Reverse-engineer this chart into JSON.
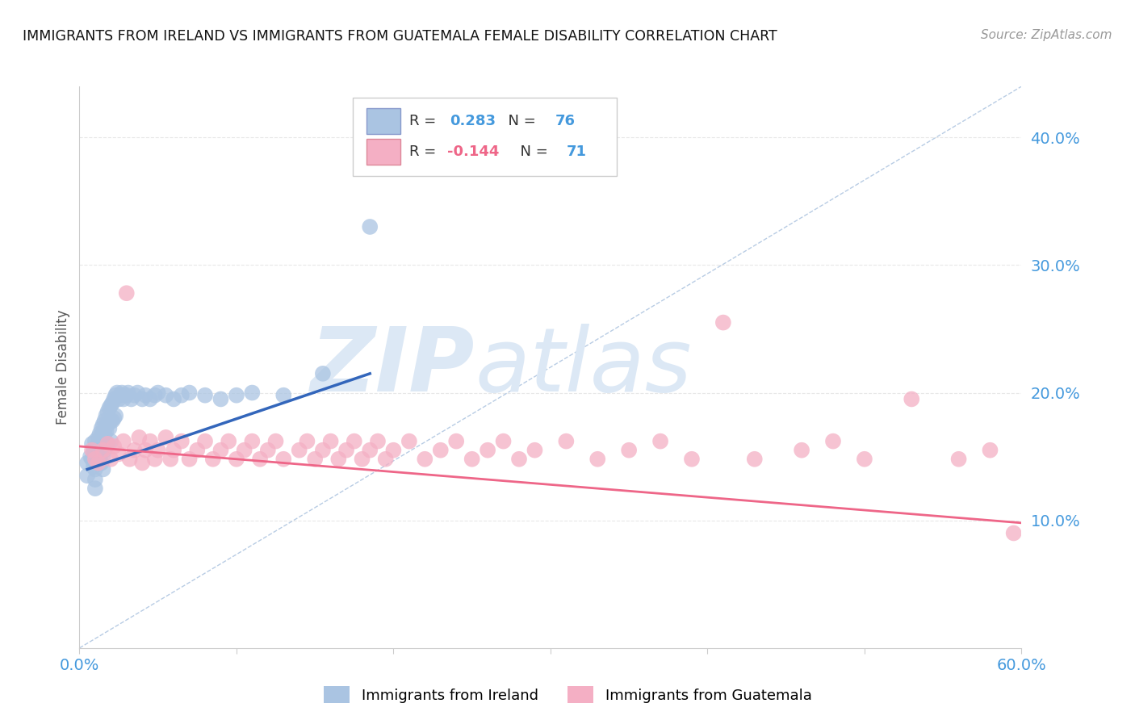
{
  "title": "IMMIGRANTS FROM IRELAND VS IMMIGRANTS FROM GUATEMALA FEMALE DISABILITY CORRELATION CHART",
  "source": "Source: ZipAtlas.com",
  "ylabel": "Female Disability",
  "xmin": 0.0,
  "xmax": 0.6,
  "ymin": 0.0,
  "ymax": 0.44,
  "yticks": [
    0.1,
    0.2,
    0.3,
    0.4
  ],
  "ytick_labels": [
    "10.0%",
    "20.0%",
    "30.0%",
    "40.0%"
  ],
  "xticks": [
    0.0,
    0.1,
    0.2,
    0.3,
    0.4,
    0.5,
    0.6
  ],
  "xtick_labels": [
    "0.0%",
    "",
    "",
    "",
    "",
    "",
    "60.0%"
  ],
  "ireland_R": 0.283,
  "ireland_N": 76,
  "guatemala_R": -0.144,
  "guatemala_N": 71,
  "ireland_color": "#aac4e2",
  "guatemala_color": "#f4afc4",
  "ireland_line_color": "#3366bb",
  "guatemala_line_color": "#ee6688",
  "diagonal_color": "#b8cce4",
  "background_color": "#ffffff",
  "grid_color": "#e8e8e8",
  "tick_color": "#4499dd",
  "ireland_scatter_x": [
    0.005,
    0.005,
    0.007,
    0.008,
    0.008,
    0.009,
    0.009,
    0.01,
    0.01,
    0.01,
    0.01,
    0.01,
    0.01,
    0.011,
    0.011,
    0.012,
    0.012,
    0.012,
    0.013,
    0.013,
    0.013,
    0.014,
    0.014,
    0.014,
    0.014,
    0.015,
    0.015,
    0.015,
    0.015,
    0.015,
    0.016,
    0.016,
    0.016,
    0.017,
    0.017,
    0.017,
    0.018,
    0.018,
    0.018,
    0.019,
    0.019,
    0.02,
    0.02,
    0.02,
    0.021,
    0.021,
    0.022,
    0.022,
    0.023,
    0.023,
    0.024,
    0.025,
    0.026,
    0.027,
    0.028,
    0.03,
    0.031,
    0.033,
    0.035,
    0.037,
    0.04,
    0.042,
    0.045,
    0.048,
    0.05,
    0.055,
    0.06,
    0.065,
    0.07,
    0.08,
    0.09,
    0.1,
    0.11,
    0.13,
    0.155,
    0.185
  ],
  "ireland_scatter_y": [
    0.145,
    0.135,
    0.15,
    0.16,
    0.148,
    0.155,
    0.142,
    0.162,
    0.155,
    0.148,
    0.14,
    0.132,
    0.125,
    0.158,
    0.145,
    0.165,
    0.155,
    0.145,
    0.168,
    0.158,
    0.148,
    0.172,
    0.162,
    0.155,
    0.145,
    0.175,
    0.168,
    0.16,
    0.15,
    0.14,
    0.178,
    0.168,
    0.155,
    0.182,
    0.17,
    0.158,
    0.185,
    0.175,
    0.16,
    0.188,
    0.172,
    0.19,
    0.178,
    0.162,
    0.192,
    0.178,
    0.195,
    0.18,
    0.198,
    0.182,
    0.2,
    0.195,
    0.198,
    0.2,
    0.195,
    0.198,
    0.2,
    0.195,
    0.198,
    0.2,
    0.195,
    0.198,
    0.195,
    0.198,
    0.2,
    0.198,
    0.195,
    0.198,
    0.2,
    0.198,
    0.195,
    0.198,
    0.2,
    0.198,
    0.215,
    0.33
  ],
  "guatemala_scatter_x": [
    0.008,
    0.01,
    0.012,
    0.015,
    0.018,
    0.02,
    0.022,
    0.025,
    0.028,
    0.03,
    0.032,
    0.035,
    0.038,
    0.04,
    0.042,
    0.045,
    0.048,
    0.05,
    0.055,
    0.058,
    0.06,
    0.065,
    0.07,
    0.075,
    0.08,
    0.085,
    0.09,
    0.095,
    0.1,
    0.105,
    0.11,
    0.115,
    0.12,
    0.125,
    0.13,
    0.14,
    0.145,
    0.15,
    0.155,
    0.16,
    0.165,
    0.17,
    0.175,
    0.18,
    0.185,
    0.19,
    0.195,
    0.2,
    0.21,
    0.22,
    0.23,
    0.24,
    0.25,
    0.26,
    0.27,
    0.28,
    0.29,
    0.31,
    0.33,
    0.35,
    0.37,
    0.39,
    0.41,
    0.43,
    0.46,
    0.48,
    0.5,
    0.53,
    0.56,
    0.58,
    0.595
  ],
  "guatemala_scatter_y": [
    0.155,
    0.148,
    0.145,
    0.155,
    0.16,
    0.148,
    0.158,
    0.152,
    0.162,
    0.278,
    0.148,
    0.155,
    0.165,
    0.145,
    0.155,
    0.162,
    0.148,
    0.155,
    0.165,
    0.148,
    0.155,
    0.162,
    0.148,
    0.155,
    0.162,
    0.148,
    0.155,
    0.162,
    0.148,
    0.155,
    0.162,
    0.148,
    0.155,
    0.162,
    0.148,
    0.155,
    0.162,
    0.148,
    0.155,
    0.162,
    0.148,
    0.155,
    0.162,
    0.148,
    0.155,
    0.162,
    0.148,
    0.155,
    0.162,
    0.148,
    0.155,
    0.162,
    0.148,
    0.155,
    0.162,
    0.148,
    0.155,
    0.162,
    0.148,
    0.155,
    0.162,
    0.148,
    0.255,
    0.148,
    0.155,
    0.162,
    0.148,
    0.195,
    0.148,
    0.155,
    0.09
  ],
  "ireland_line_x0": 0.005,
  "ireland_line_x1": 0.185,
  "ireland_line_y0": 0.14,
  "ireland_line_y1": 0.215,
  "guatemala_line_x0": 0.0,
  "guatemala_line_x1": 0.6,
  "guatemala_line_y0": 0.158,
  "guatemala_line_y1": 0.098
}
